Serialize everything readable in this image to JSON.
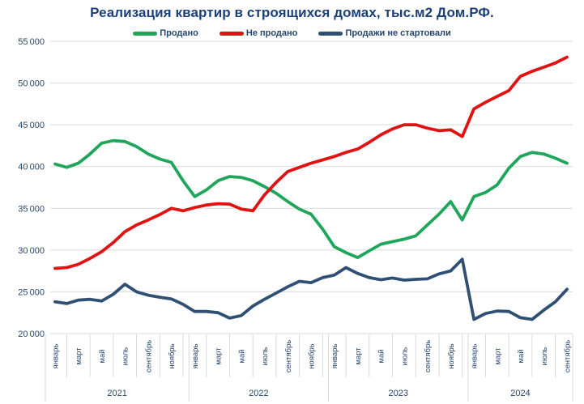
{
  "title": "Реализация квартир в строящихся домах, тыс.м2 Дом.РФ.",
  "colors": {
    "title": "#1B4079",
    "axis_text": "#24466E",
    "gridline": "#D9D9D9",
    "sold": "#1FA65A",
    "unsold": "#E01212",
    "not_started": "#2F5073"
  },
  "chart_data": {
    "type": "line",
    "title": "Реализация квартир в строящихся домах, тыс.м2 Дом.РФ.",
    "legend_position": "top",
    "grid": "horizontal",
    "ylim": [
      20000,
      55000
    ],
    "ytick_step": 5000,
    "xlabel": "",
    "ylabel": "",
    "categories": [
      "2021-01",
      "2021-02",
      "2021-03",
      "2021-04",
      "2021-05",
      "2021-06",
      "2021-07",
      "2021-08",
      "2021-09",
      "2021-10",
      "2021-11",
      "2021-12",
      "2022-01",
      "2022-02",
      "2022-03",
      "2022-04",
      "2022-05",
      "2022-06",
      "2022-07",
      "2022-08",
      "2022-09",
      "2022-10",
      "2022-11",
      "2022-12",
      "2023-01",
      "2023-02",
      "2023-03",
      "2023-04",
      "2023-05",
      "2023-06",
      "2023-07",
      "2023-08",
      "2023-09",
      "2023-10",
      "2023-11",
      "2023-12",
      "2024-01",
      "2024-02",
      "2024-03",
      "2024-04",
      "2024-05",
      "2024-06",
      "2024-07",
      "2024-08",
      "2024-09"
    ],
    "series": [
      {
        "name": "Продано",
        "color": "#1FA65A",
        "values": [
          40300,
          39900,
          40400,
          41500,
          42800,
          43100,
          43000,
          42400,
          41500,
          40900,
          40500,
          38300,
          36400,
          37200,
          38300,
          38800,
          38700,
          38300,
          37600,
          36800,
          35800,
          34900,
          34300,
          32500,
          30400,
          29700,
          29100,
          29900,
          30700,
          31000,
          31300,
          31700,
          33000,
          34300,
          35800,
          33600,
          36400,
          36900,
          37800,
          39800,
          41200,
          41700,
          41500,
          41000,
          40400
        ]
      },
      {
        "name": "Не продано",
        "color": "#E01212",
        "values": [
          27800,
          27900,
          28300,
          29000,
          29800,
          30900,
          32200,
          33000,
          33600,
          34250,
          35000,
          34700,
          35100,
          35400,
          35550,
          35500,
          34900,
          34700,
          36600,
          38100,
          39400,
          39900,
          40400,
          40800,
          41200,
          41700,
          42100,
          42900,
          43800,
          44500,
          45000,
          45000,
          44600,
          44300,
          44400,
          43600,
          46900,
          47700,
          48400,
          49100,
          50800,
          51400,
          51900,
          52400,
          53100
        ]
      },
      {
        "name": "Продажи не стартовали",
        "color": "#2F5073",
        "values": [
          23800,
          23600,
          24000,
          24100,
          23900,
          24700,
          25900,
          25000,
          24600,
          24350,
          24150,
          23500,
          22650,
          22650,
          22500,
          21850,
          22150,
          23300,
          24100,
          24850,
          25600,
          26250,
          26100,
          26700,
          27000,
          27900,
          27200,
          26700,
          26450,
          26650,
          26400,
          26500,
          26550,
          27150,
          27500,
          28900,
          21700,
          22400,
          22700,
          22650,
          21900,
          21700,
          22800,
          23800,
          25300
        ]
      }
    ],
    "x_axis": {
      "month_tick_labels": [
        "январь",
        "март",
        "май",
        "июль",
        "сентябрь",
        "ноябрь",
        "январь",
        "март",
        "май",
        "июль",
        "сентябрь",
        "ноябрь",
        "январь",
        "март",
        "май",
        "июль",
        "сентябрь",
        "ноябрь",
        "январь",
        "март",
        "май",
        "июль",
        "сентябрь"
      ],
      "month_tick_indices": [
        0,
        2,
        4,
        6,
        8,
        10,
        12,
        14,
        16,
        18,
        20,
        22,
        24,
        26,
        28,
        30,
        32,
        34,
        36,
        38,
        40,
        42,
        44
      ],
      "year_labels": [
        "2021",
        "2022",
        "2023",
        "2024"
      ],
      "year_month_counts": [
        12,
        12,
        12,
        9
      ]
    }
  }
}
